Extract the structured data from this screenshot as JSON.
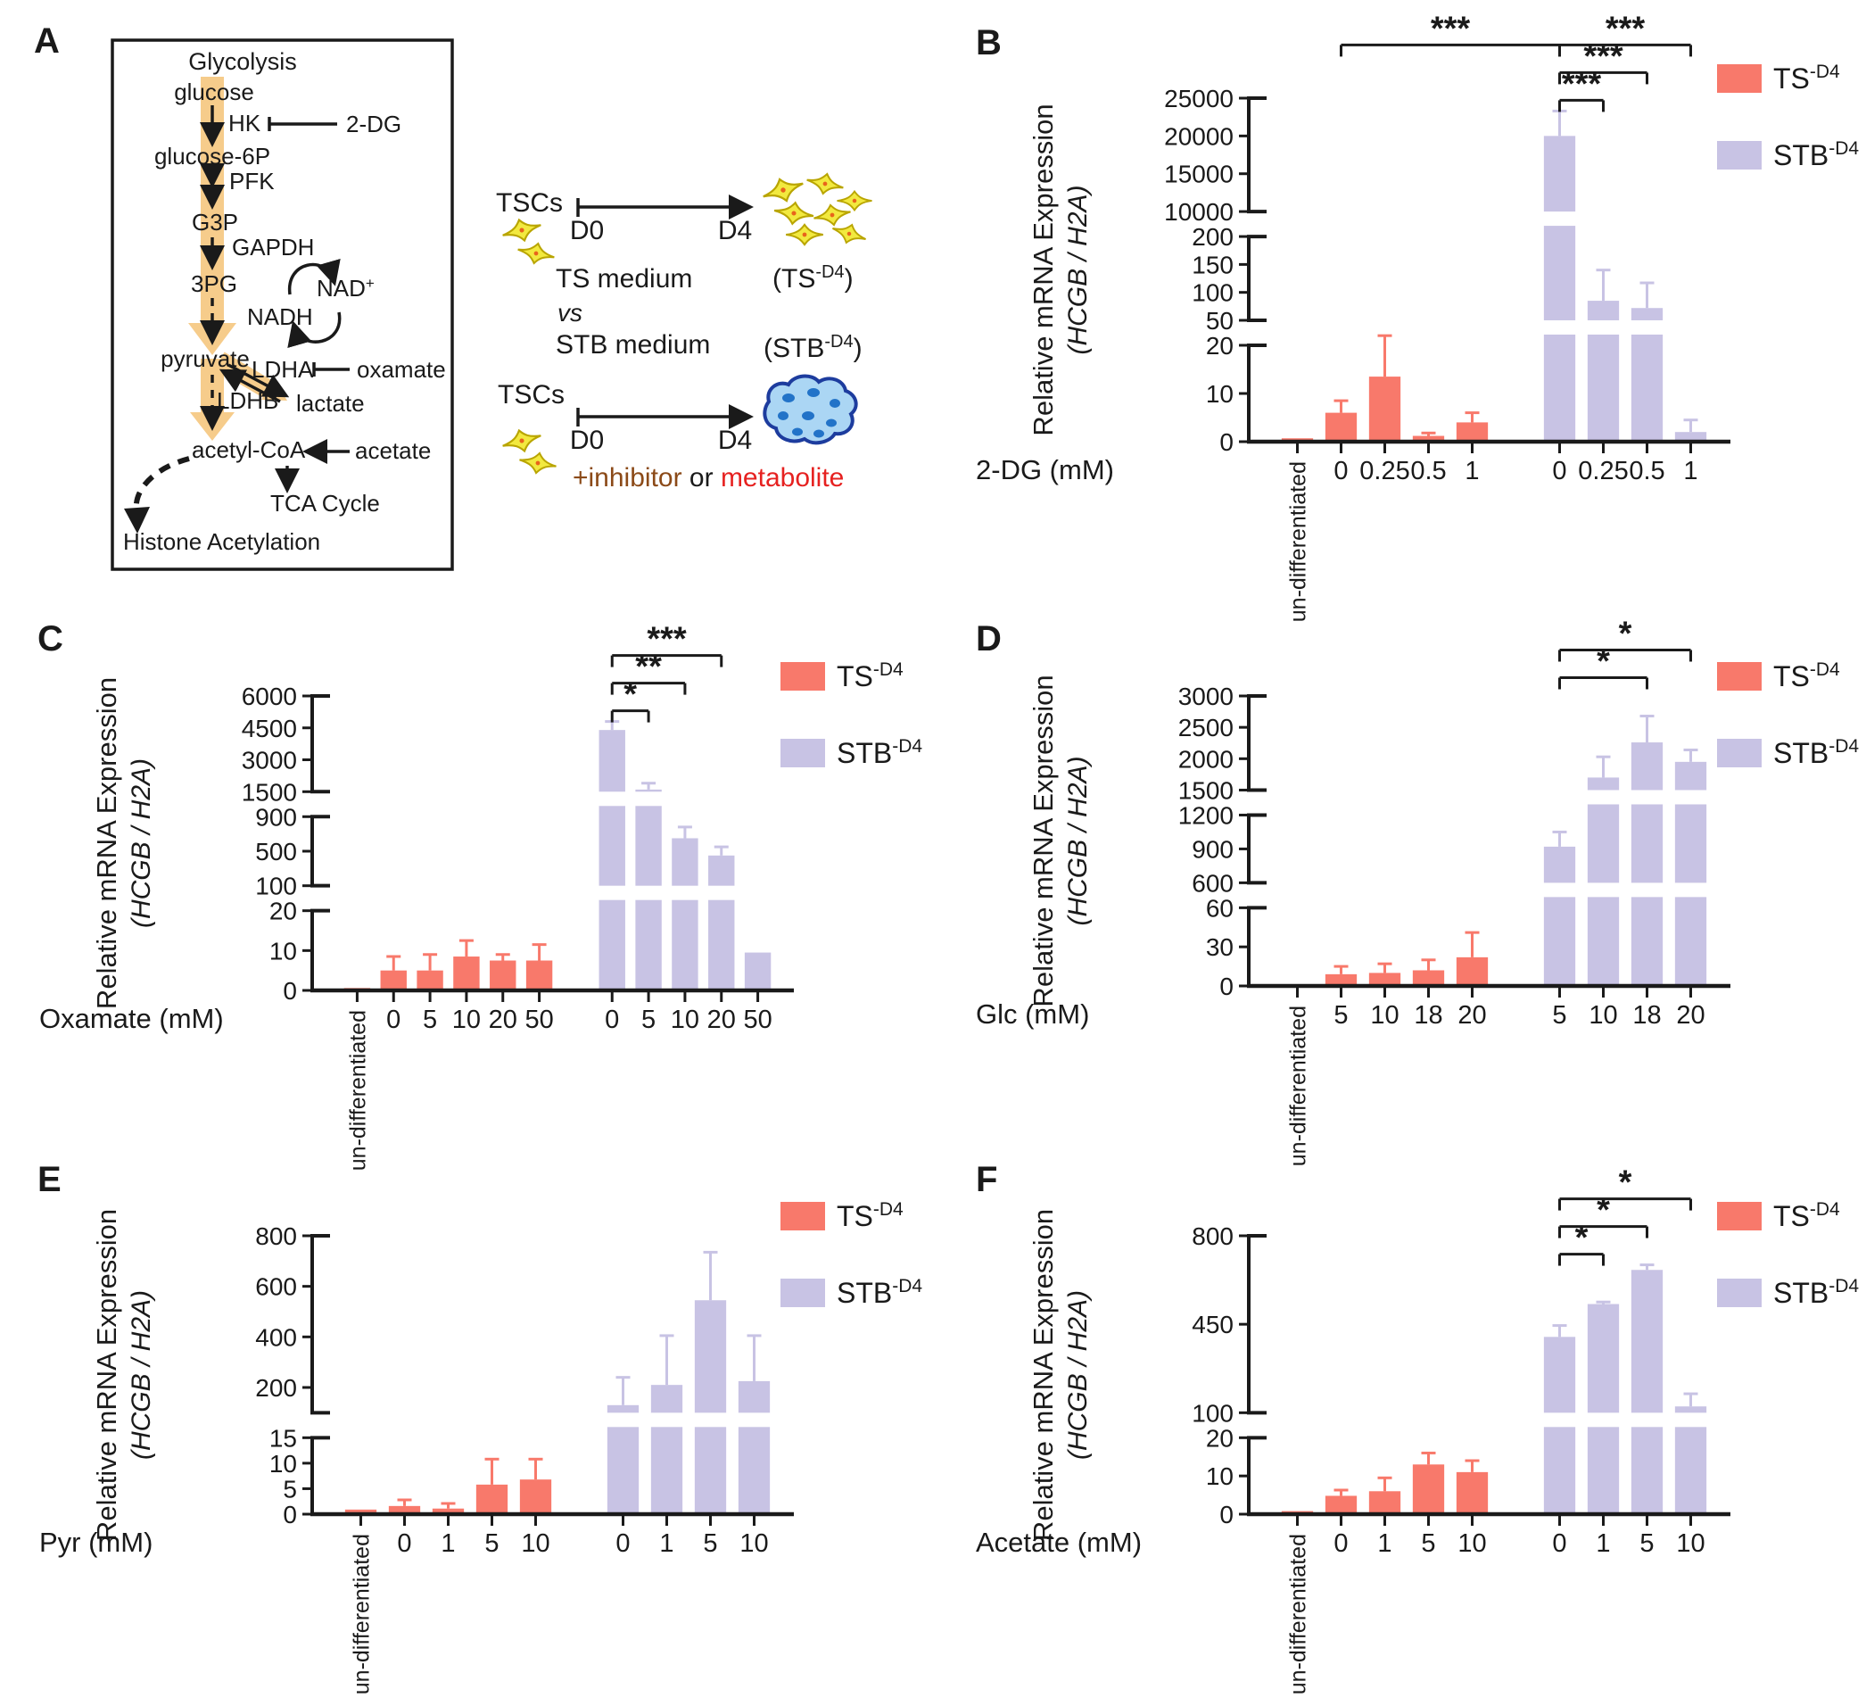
{
  "panel_letters": [
    "A",
    "B",
    "C",
    "D",
    "E",
    "F"
  ],
  "colors": {
    "ts_bar": "#F8796B",
    "stb_bar": "#C8C3E4",
    "red": "#E62120",
    "brown": "#8B4A18",
    "ink": "#1A1A1A",
    "flux_arrow": "#F6CC8B",
    "cell_fill": "#F2E93F",
    "cell_stroke": "#B9A500",
    "cell_dot": "#E8641B",
    "blob_fill": "#ABD6F4",
    "blob_stroke": "#1D3C9E",
    "blob_dot": "#2273C8"
  },
  "legend": {
    "items": [
      {
        "key": "ts_bar",
        "label": "TS",
        "sup": "-D4"
      },
      {
        "key": "stb_bar",
        "label": "STB",
        "sup": "-D4"
      }
    ]
  },
  "panelA": {
    "title": "Glycolysis",
    "nodes": {
      "glucose": "glucose",
      "hk": "HK",
      "twodg": "2-DG",
      "g6p": "glucose-6P",
      "pfk": "PFK",
      "g3p": "G3P",
      "gapdh": "GAPDH",
      "pg3": "3PG",
      "nad": "NAD",
      "nad_sup": "+",
      "nadh": "NADH",
      "pyruvate": "pyruvate",
      "ldha": "LDHA",
      "oxamate": "oxamate",
      "ldhb": "LDHB",
      "lactate": "lactate",
      "acetylcoa": "acetyl-CoA",
      "acetate": "acetate",
      "tca": "TCA Cycle",
      "histone": "Histone Acetylation"
    },
    "schematic": {
      "tscs1": "TSCs",
      "tscs2": "TSCs",
      "d0_1": "D0",
      "d4_1": "D4",
      "d0_2": "D0",
      "d4_2": "D4",
      "ts_medium": "TS medium",
      "vs": "vs",
      "stb_medium": "STB medium",
      "ts_result": "(TS",
      "ts_result_sup": "-D4",
      "ts_result_close": ")",
      "stb_result": "(STB",
      "stb_result_sup": "-D4",
      "stb_result_close": ")",
      "inhibitor": "+inhibitor",
      "or": " or ",
      "metabolite": "metabolite"
    }
  },
  "chart_data": [
    {
      "panel": "B",
      "type": "bar",
      "ylabel_line1": "Relative mRNA Expression",
      "ylabel_line2": "(HCGB / H2A)",
      "xlabel": "2-DG (mM)",
      "xlabel_color": "#8B4A18",
      "categories": [
        {
          "group": "und",
          "label": "un-differentiated"
        },
        {
          "group": "TS",
          "label": "0"
        },
        {
          "group": "TS",
          "label": "0.25"
        },
        {
          "group": "TS",
          "label": "0.5"
        },
        {
          "group": "TS",
          "label": "1"
        },
        {
          "group": "STB",
          "label": "0"
        },
        {
          "group": "STB",
          "label": "0.25"
        },
        {
          "group": "STB",
          "label": "0.5"
        },
        {
          "group": "STB",
          "label": "1"
        }
      ],
      "values": [
        0.7,
        6,
        13.5,
        1.2,
        4,
        20000,
        85,
        72,
        2
      ],
      "errors": [
        0,
        2.5,
        8.5,
        0.6,
        2,
        3300,
        55,
        45,
        2.5
      ],
      "segments": [
        {
          "min": 0,
          "max": 20,
          "ticks": [
            0,
            10,
            20
          ]
        },
        {
          "min": 50,
          "max": 200,
          "ticks": [
            50,
            100,
            150,
            200
          ]
        },
        {
          "min": 10000,
          "max": 25000,
          "ticks": [
            10000,
            15000,
            20000,
            25000
          ]
        }
      ],
      "significance": [
        {
          "a": 1,
          "b": 5,
          "label": "***",
          "level": 2
        },
        {
          "a": 5,
          "b": 8,
          "label": "***",
          "level": 2
        },
        {
          "a": 5,
          "b": 7,
          "label": "***",
          "level": 1
        },
        {
          "a": 5,
          "b": 6,
          "label": "***",
          "level": 0
        }
      ]
    },
    {
      "panel": "C",
      "type": "bar",
      "ylabel_line1": "Relative mRNA Expression",
      "ylabel_line2": "(HCGB / H2A)",
      "xlabel": "Oxamate (mM)",
      "xlabel_color": "#8B4A18",
      "categories": [
        {
          "group": "und",
          "label": "un-differentiated"
        },
        {
          "group": "TS",
          "label": "0"
        },
        {
          "group": "TS",
          "label": "5"
        },
        {
          "group": "TS",
          "label": "10"
        },
        {
          "group": "TS",
          "label": "20"
        },
        {
          "group": "TS",
          "label": "50"
        },
        {
          "group": "STB",
          "label": "0"
        },
        {
          "group": "STB",
          "label": "5"
        },
        {
          "group": "STB",
          "label": "10"
        },
        {
          "group": "STB",
          "label": "20"
        },
        {
          "group": "STB",
          "label": "50"
        }
      ],
      "values": [
        0.6,
        5,
        5,
        8.5,
        7.5,
        7.5,
        4400,
        1600,
        650,
        450,
        9.5
      ],
      "errors": [
        0,
        3.5,
        4,
        4,
        1.5,
        4,
        400,
        300,
        130,
        100,
        0
      ],
      "segments": [
        {
          "min": 0,
          "max": 20,
          "ticks": [
            0,
            10,
            20
          ]
        },
        {
          "min": 100,
          "max": 900,
          "ticks": [
            100,
            500,
            900
          ]
        },
        {
          "min": 1500,
          "max": 6000,
          "ticks": [
            1500,
            3000,
            4500,
            6000
          ]
        }
      ],
      "significance": [
        {
          "a": 6,
          "b": 7,
          "label": "*",
          "level": 0
        },
        {
          "a": 6,
          "b": 8,
          "label": "**",
          "level": 1
        },
        {
          "a": 6,
          "b": 9,
          "label": "***",
          "level": 2
        }
      ]
    },
    {
      "panel": "D",
      "type": "bar",
      "ylabel_line1": "Relative mRNA Expression",
      "ylabel_line2": "(HCGB / H2A)",
      "xlabel": "Glc (mM)",
      "xlabel_color": "#E62120",
      "categories": [
        {
          "group": "und",
          "label": "un-differentiated"
        },
        {
          "group": "TS",
          "label": "5"
        },
        {
          "group": "TS",
          "label": "10"
        },
        {
          "group": "TS",
          "label": "18"
        },
        {
          "group": "TS",
          "label": "20"
        },
        {
          "group": "STB",
          "label": "5"
        },
        {
          "group": "STB",
          "label": "10"
        },
        {
          "group": "STB",
          "label": "18"
        },
        {
          "group": "STB",
          "label": "20"
        }
      ],
      "values": [
        0.5,
        9,
        10,
        12,
        22,
        920,
        1700,
        2260,
        1950
      ],
      "errors": [
        0,
        6,
        7,
        8,
        19,
        130,
        330,
        420,
        190
      ],
      "segments": [
        {
          "min": 0,
          "max": 60,
          "ticks": [
            0,
            30,
            60
          ]
        },
        {
          "min": 600,
          "max": 1200,
          "ticks": [
            600,
            900,
            1200
          ]
        },
        {
          "min": 1500,
          "max": 3000,
          "ticks": [
            1500,
            2000,
            2500,
            3000
          ]
        }
      ],
      "significance": [
        {
          "a": 5,
          "b": 7,
          "label": "*",
          "level": 1
        },
        {
          "a": 5,
          "b": 8,
          "label": "*",
          "level": 2
        }
      ]
    },
    {
      "panel": "E",
      "type": "bar",
      "ylabel_line1": "Relative mRNA Expression",
      "ylabel_line2": "(HCGB / H2A)",
      "xlabel": "Pyr (mM)",
      "xlabel_color": "#E62120",
      "categories": [
        {
          "group": "und",
          "label": "un-differentiated"
        },
        {
          "group": "TS",
          "label": "0"
        },
        {
          "group": "TS",
          "label": "1"
        },
        {
          "group": "TS",
          "label": "5"
        },
        {
          "group": "TS",
          "label": "10"
        },
        {
          "group": "STB",
          "label": "0"
        },
        {
          "group": "STB",
          "label": "1"
        },
        {
          "group": "STB",
          "label": "5"
        },
        {
          "group": "STB",
          "label": "10"
        }
      ],
      "values": [
        0.9,
        1.6,
        1.1,
        5.8,
        6.8,
        130,
        210,
        545,
        225
      ],
      "errors": [
        0,
        1.2,
        1.0,
        5.0,
        4.0,
        110,
        195,
        190,
        180
      ],
      "segments": [
        {
          "min": 0,
          "max": 15,
          "ticks": [
            0,
            5,
            10,
            15
          ]
        },
        {
          "min": 100,
          "max": 800,
          "ticks": [
            200,
            400,
            600,
            800
          ]
        }
      ],
      "significance": []
    },
    {
      "panel": "F",
      "type": "bar",
      "ylabel_line1": "Relative mRNA Expression",
      "ylabel_line2": "(HCGB / H2A)",
      "xlabel": "Acetate (mM)",
      "xlabel_color": "#E62120",
      "categories": [
        {
          "group": "und",
          "label": "un-differentiated"
        },
        {
          "group": "TS",
          "label": "0"
        },
        {
          "group": "TS",
          "label": "1"
        },
        {
          "group": "TS",
          "label": "5"
        },
        {
          "group": "TS",
          "label": "10"
        },
        {
          "group": "STB",
          "label": "0"
        },
        {
          "group": "STB",
          "label": "1"
        },
        {
          "group": "STB",
          "label": "5"
        },
        {
          "group": "STB",
          "label": "10"
        }
      ],
      "values": [
        0.8,
        4.8,
        6,
        13,
        11,
        400,
        530,
        665,
        125
      ],
      "errors": [
        0,
        1.5,
        3.5,
        3,
        3,
        45,
        8,
        20,
        50
      ],
      "segments": [
        {
          "min": 0,
          "max": 20,
          "ticks": [
            0,
            10,
            20
          ]
        },
        {
          "min": 100,
          "max": 800,
          "ticks": [
            100,
            450,
            800
          ]
        }
      ],
      "significance": [
        {
          "a": 5,
          "b": 6,
          "label": "*",
          "level": 0
        },
        {
          "a": 5,
          "b": 7,
          "label": "*",
          "level": 1
        },
        {
          "a": 5,
          "b": 8,
          "label": "*",
          "level": 2
        }
      ]
    }
  ]
}
